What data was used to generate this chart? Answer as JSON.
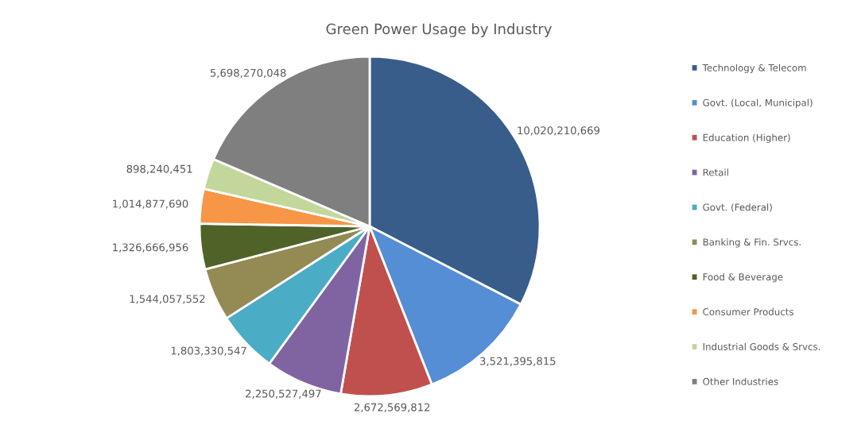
{
  "chart_data": {
    "type": "pie",
    "title": "Green Power Usage by Industry",
    "categories": [
      "Technology & Telecom",
      "Govt. (Local, Municipal)",
      "Education (Higher)",
      "Retail",
      "Govt. (Federal)",
      "Banking & Fin. Srvcs.",
      "Food & Beverage",
      "Consumer Products",
      "Industrial Goods & Srvcs.",
      "Other Industries"
    ],
    "values": [
      10020210669,
      3521395815,
      2672569812,
      2250527497,
      1803330547,
      1544057552,
      1326666956,
      1014877690,
      898240451,
      5698270048
    ],
    "value_labels": [
      "10,020,210,669",
      "3,521,395,815",
      "2,672,569,812",
      "2,250,527,497",
      "1,803,330,547",
      "1,544,057,552",
      "1,326,666,956",
      "1,014,877,690",
      "898,240,451",
      "5,698,270,048"
    ],
    "colors": [
      "#385d8a",
      "#558ed5",
      "#c0504d",
      "#8064a2",
      "#4bacc6",
      "#948a54",
      "#4f6228",
      "#f79646",
      "#c3d69b",
      "#7f7f7f"
    ],
    "legend": "right"
  }
}
